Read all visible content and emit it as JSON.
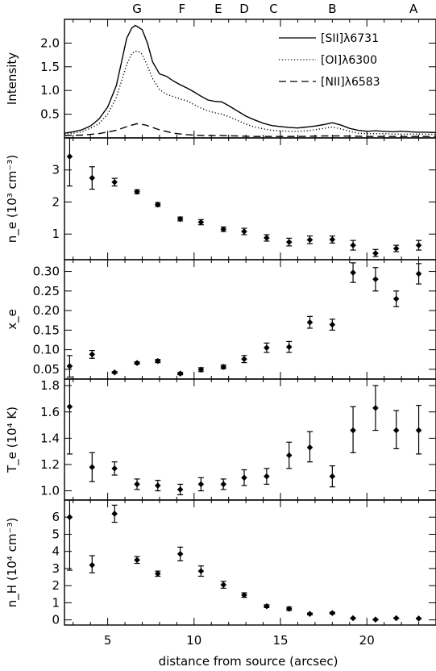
{
  "chart_data": {
    "type": "multi-panel",
    "xlabel": "distance from source (arcsec)",
    "xlim": [
      2.5,
      24.0
    ],
    "xticks": [
      5,
      10,
      15,
      20
    ],
    "knots": [
      {
        "label": "G",
        "x": 6.7
      },
      {
        "label": "F",
        "x": 9.3
      },
      {
        "label": "E",
        "x": 11.4
      },
      {
        "label": "D",
        "x": 12.9
      },
      {
        "label": "C",
        "x": 14.6
      },
      {
        "label": "B",
        "x": 18.0
      },
      {
        "label": "A",
        "x": 22.7
      }
    ],
    "panels": [
      {
        "id": "intensity",
        "type": "line",
        "ylabel": "Intensity",
        "ylim": [
          0.0,
          2.5
        ],
        "yticks": [
          "0.5",
          "1.0",
          "1.5",
          "2.0"
        ],
        "ytick_values": [
          0.5,
          1.0,
          1.5,
          2.0
        ],
        "series": [
          {
            "name": "[SII]λ6731",
            "style": "solid",
            "x": [
              2.5,
              3.0,
              3.5,
              4.0,
              4.5,
              5.0,
              5.5,
              5.8,
              6.1,
              6.4,
              6.6,
              6.8,
              7.0,
              7.3,
              7.6,
              8.0,
              8.4,
              8.8,
              9.2,
              9.6,
              10.0,
              10.4,
              10.8,
              11.2,
              11.6,
              12.0,
              12.5,
              13.0,
              13.5,
              14.0,
              14.5,
              15.0,
              15.5,
              16.0,
              16.5,
              17.0,
              17.5,
              18.0,
              18.5,
              19.0,
              19.5,
              20.0,
              20.5,
              21.0,
              21.5,
              22.0,
              22.5,
              23.0,
              23.5,
              24.0
            ],
            "y": [
              0.1,
              0.13,
              0.17,
              0.25,
              0.4,
              0.65,
              1.1,
              1.6,
              2.1,
              2.32,
              2.37,
              2.33,
              2.28,
              2.0,
              1.6,
              1.35,
              1.3,
              1.2,
              1.12,
              1.05,
              0.97,
              0.88,
              0.8,
              0.77,
              0.76,
              0.68,
              0.57,
              0.46,
              0.38,
              0.31,
              0.26,
              0.24,
              0.22,
              0.21,
              0.23,
              0.25,
              0.28,
              0.32,
              0.27,
              0.2,
              0.16,
              0.14,
              0.15,
              0.14,
              0.13,
              0.14,
              0.13,
              0.12,
              0.12,
              0.11
            ]
          },
          {
            "name": "[OI]λ6300",
            "style": "dotted",
            "x": [
              2.5,
              3.0,
              3.5,
              4.0,
              4.5,
              5.0,
              5.5,
              5.8,
              6.1,
              6.4,
              6.6,
              6.8,
              7.0,
              7.3,
              7.6,
              8.0,
              8.4,
              8.8,
              9.2,
              9.6,
              10.0,
              10.4,
              10.8,
              11.2,
              11.6,
              12.0,
              12.5,
              13.0,
              13.5,
              14.0,
              14.5,
              15.0,
              15.5,
              16.0,
              16.5,
              17.0,
              17.5,
              18.0,
              18.5,
              19.0,
              19.5,
              20.0,
              20.5,
              21.0,
              21.5,
              22.0,
              22.5,
              23.0,
              23.5,
              24.0
            ],
            "y": [
              0.08,
              0.1,
              0.13,
              0.2,
              0.3,
              0.5,
              0.85,
              1.2,
              1.55,
              1.78,
              1.83,
              1.82,
              1.76,
              1.52,
              1.25,
              1.02,
              0.92,
              0.87,
              0.82,
              0.78,
              0.7,
              0.63,
              0.57,
              0.53,
              0.5,
              0.45,
              0.37,
              0.29,
              0.23,
              0.19,
              0.16,
              0.15,
              0.14,
              0.14,
              0.15,
              0.17,
              0.2,
              0.23,
              0.19,
              0.14,
              0.1,
              0.09,
              0.09,
              0.09,
              0.08,
              0.08,
              0.08,
              0.08,
              0.08,
              0.07
            ]
          },
          {
            "name": "[NII]λ6583",
            "style": "dashed",
            "x": [
              2.5,
              3.5,
              4.5,
              5.5,
              6.2,
              6.7,
              7.2,
              8.0,
              8.8,
              9.5,
              10.5,
              11.5,
              12.5,
              13.5,
              14.5,
              16.0,
              17.5,
              18.5,
              20.0,
              21.5,
              23.0,
              24.0
            ],
            "y": [
              0.05,
              0.06,
              0.09,
              0.16,
              0.25,
              0.3,
              0.27,
              0.17,
              0.1,
              0.07,
              0.05,
              0.05,
              0.04,
              0.03,
              0.03,
              0.03,
              0.04,
              0.04,
              0.03,
              0.03,
              0.03,
              0.03
            ]
          }
        ]
      },
      {
        "id": "ne",
        "type": "scatter",
        "ylabel": "n_e (10³ cm⁻³)",
        "ylim": [
          0.2,
          4.0
        ],
        "yticks": [
          "1",
          "2",
          "3"
        ],
        "ytick_values": [
          1,
          2,
          3
        ],
        "points": [
          {
            "x": 2.8,
            "y": 3.42,
            "lo": 2.5,
            "hi": 4.0
          },
          {
            "x": 4.1,
            "y": 2.75,
            "lo": 2.4,
            "hi": 3.1
          },
          {
            "x": 5.4,
            "y": 2.62,
            "lo": 2.5,
            "hi": 2.74
          },
          {
            "x": 6.7,
            "y": 2.32,
            "lo": 2.26,
            "hi": 2.38
          },
          {
            "x": 7.9,
            "y": 1.92,
            "lo": 1.86,
            "hi": 1.98
          },
          {
            "x": 9.2,
            "y": 1.47,
            "lo": 1.41,
            "hi": 1.53
          },
          {
            "x": 10.4,
            "y": 1.37,
            "lo": 1.29,
            "hi": 1.45
          },
          {
            "x": 11.7,
            "y": 1.15,
            "lo": 1.08,
            "hi": 1.22
          },
          {
            "x": 12.9,
            "y": 1.08,
            "lo": 0.98,
            "hi": 1.18
          },
          {
            "x": 14.2,
            "y": 0.88,
            "lo": 0.78,
            "hi": 0.98
          },
          {
            "x": 15.5,
            "y": 0.75,
            "lo": 0.63,
            "hi": 0.87
          },
          {
            "x": 16.7,
            "y": 0.82,
            "lo": 0.7,
            "hi": 0.94
          },
          {
            "x": 18.0,
            "y": 0.83,
            "lo": 0.72,
            "hi": 0.94
          },
          {
            "x": 19.2,
            "y": 0.65,
            "lo": 0.5,
            "hi": 0.8
          },
          {
            "x": 20.5,
            "y": 0.4,
            "lo": 0.3,
            "hi": 0.52
          },
          {
            "x": 21.7,
            "y": 0.55,
            "lo": 0.45,
            "hi": 0.65
          },
          {
            "x": 23.0,
            "y": 0.65,
            "lo": 0.5,
            "hi": 0.8
          }
        ]
      },
      {
        "id": "xe",
        "type": "scatter",
        "ylabel": "x_e",
        "ylim": [
          0.025,
          0.33
        ],
        "yticks": [
          "0.05",
          "0.10",
          "0.15",
          "0.20",
          "0.25",
          "0.30"
        ],
        "ytick_values": [
          0.05,
          0.1,
          0.15,
          0.2,
          0.25,
          0.3
        ],
        "points": [
          {
            "x": 2.8,
            "y": 0.058,
            "lo": 0.03,
            "hi": 0.085
          },
          {
            "x": 4.1,
            "y": 0.088,
            "lo": 0.078,
            "hi": 0.098
          },
          {
            "x": 5.4,
            "y": 0.042,
            "lo": 0.04,
            "hi": 0.044
          },
          {
            "x": 6.7,
            "y": 0.066,
            "lo": 0.063,
            "hi": 0.069
          },
          {
            "x": 7.9,
            "y": 0.071,
            "lo": 0.067,
            "hi": 0.075
          },
          {
            "x": 9.2,
            "y": 0.039,
            "lo": 0.036,
            "hi": 0.042
          },
          {
            "x": 10.4,
            "y": 0.049,
            "lo": 0.044,
            "hi": 0.054
          },
          {
            "x": 11.7,
            "y": 0.056,
            "lo": 0.051,
            "hi": 0.061
          },
          {
            "x": 12.9,
            "y": 0.076,
            "lo": 0.067,
            "hi": 0.085
          },
          {
            "x": 14.2,
            "y": 0.105,
            "lo": 0.093,
            "hi": 0.117
          },
          {
            "x": 15.5,
            "y": 0.107,
            "lo": 0.093,
            "hi": 0.121
          },
          {
            "x": 16.7,
            "y": 0.17,
            "lo": 0.155,
            "hi": 0.185
          },
          {
            "x": 18.0,
            "y": 0.164,
            "lo": 0.15,
            "hi": 0.178
          },
          {
            "x": 19.2,
            "y": 0.297,
            "lo": 0.272,
            "hi": 0.322
          },
          {
            "x": 20.5,
            "y": 0.28,
            "lo": 0.25,
            "hi": 0.31
          },
          {
            "x": 21.7,
            "y": 0.23,
            "lo": 0.21,
            "hi": 0.25
          },
          {
            "x": 23.0,
            "y": 0.294,
            "lo": 0.268,
            "hi": 0.32
          }
        ]
      },
      {
        "id": "te",
        "type": "scatter",
        "ylabel": "T_e (10⁴ K)",
        "ylim": [
          0.93,
          1.85
        ],
        "yticks": [
          "1.0",
          "1.2",
          "1.4",
          "1.6",
          "1.8"
        ],
        "ytick_values": [
          1.0,
          1.2,
          1.4,
          1.6,
          1.8
        ],
        "points": [
          {
            "x": 2.8,
            "y": 1.64,
            "lo": 1.28,
            "hi": 1.85
          },
          {
            "x": 4.1,
            "y": 1.18,
            "lo": 1.07,
            "hi": 1.29
          },
          {
            "x": 5.4,
            "y": 1.17,
            "lo": 1.12,
            "hi": 1.22
          },
          {
            "x": 6.7,
            "y": 1.05,
            "lo": 1.01,
            "hi": 1.09
          },
          {
            "x": 7.9,
            "y": 1.04,
            "lo": 1.0,
            "hi": 1.08
          },
          {
            "x": 9.2,
            "y": 1.01,
            "lo": 0.97,
            "hi": 1.05
          },
          {
            "x": 10.4,
            "y": 1.05,
            "lo": 1.0,
            "hi": 1.1
          },
          {
            "x": 11.7,
            "y": 1.05,
            "lo": 1.01,
            "hi": 1.09
          },
          {
            "x": 12.9,
            "y": 1.1,
            "lo": 1.04,
            "hi": 1.16
          },
          {
            "x": 14.2,
            "y": 1.11,
            "lo": 1.05,
            "hi": 1.17
          },
          {
            "x": 15.5,
            "y": 1.27,
            "lo": 1.17,
            "hi": 1.37
          },
          {
            "x": 16.7,
            "y": 1.33,
            "lo": 1.22,
            "hi": 1.45
          },
          {
            "x": 18.0,
            "y": 1.11,
            "lo": 1.03,
            "hi": 1.19
          },
          {
            "x": 19.2,
            "y": 1.46,
            "lo": 1.29,
            "hi": 1.64
          },
          {
            "x": 20.5,
            "y": 1.63,
            "lo": 1.46,
            "hi": 1.8
          },
          {
            "x": 21.7,
            "y": 1.46,
            "lo": 1.32,
            "hi": 1.61
          },
          {
            "x": 23.0,
            "y": 1.46,
            "lo": 1.28,
            "hi": 1.65
          }
        ]
      },
      {
        "id": "nh",
        "type": "scatter",
        "ylabel": "n_H (10⁴ cm⁻³)",
        "ylim": [
          -0.3,
          7.0
        ],
        "yticks": [
          "0",
          "1",
          "2",
          "3",
          "4",
          "5",
          "6"
        ],
        "ytick_values": [
          0,
          1,
          2,
          3,
          4,
          5,
          6
        ],
        "points": [
          {
            "x": 2.8,
            "y": 6.0,
            "lo": 2.9,
            "hi": 7.0
          },
          {
            "x": 4.1,
            "y": 3.2,
            "lo": 2.75,
            "hi": 3.75
          },
          {
            "x": 5.4,
            "y": 6.2,
            "lo": 5.7,
            "hi": 6.7
          },
          {
            "x": 6.7,
            "y": 3.5,
            "lo": 3.3,
            "hi": 3.7
          },
          {
            "x": 7.9,
            "y": 2.7,
            "lo": 2.55,
            "hi": 2.85
          },
          {
            "x": 9.2,
            "y": 3.85,
            "lo": 3.45,
            "hi": 4.25
          },
          {
            "x": 10.4,
            "y": 2.85,
            "lo": 2.55,
            "hi": 3.15
          },
          {
            "x": 11.7,
            "y": 2.05,
            "lo": 1.85,
            "hi": 2.25
          },
          {
            "x": 12.9,
            "y": 1.45,
            "lo": 1.32,
            "hi": 1.58
          },
          {
            "x": 14.2,
            "y": 0.8,
            "lo": 0.72,
            "hi": 0.88
          },
          {
            "x": 15.5,
            "y": 0.65,
            "lo": 0.55,
            "hi": 0.75
          },
          {
            "x": 16.7,
            "y": 0.35,
            "lo": 0.3,
            "hi": 0.4
          },
          {
            "x": 18.0,
            "y": 0.4,
            "lo": 0.35,
            "hi": 0.45
          },
          {
            "x": 19.2,
            "y": 0.1,
            "lo": 0.08,
            "hi": 0.12
          },
          {
            "x": 20.5,
            "y": 0.02,
            "lo": 0.0,
            "hi": 0.04
          },
          {
            "x": 21.7,
            "y": 0.1,
            "lo": 0.08,
            "hi": 0.12
          },
          {
            "x": 23.0,
            "y": 0.08,
            "lo": 0.06,
            "hi": 0.1
          }
        ]
      }
    ]
  }
}
